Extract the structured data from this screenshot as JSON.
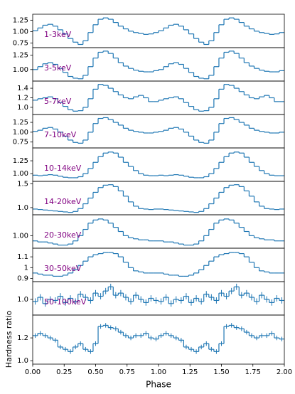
{
  "chart_data": {
    "type": "step",
    "color": "#1f77b4",
    "xlabel": "Phase",
    "ylabel": "Hardness ratio",
    "xlim": [
      0,
      2
    ],
    "xticks": [
      {
        "value": 0,
        "label": "0.00"
      },
      {
        "value": 0.25,
        "label": "0.25"
      },
      {
        "value": 0.5,
        "label": "0.50"
      },
      {
        "value": 0.75,
        "label": "0.75"
      },
      {
        "value": 1,
        "label": "1.00"
      },
      {
        "value": 1.25,
        "label": "1.25"
      },
      {
        "value": 1.5,
        "label": "1.50"
      },
      {
        "value": 1.75,
        "label": "1.75"
      },
      {
        "value": 2,
        "label": "2.00"
      }
    ],
    "x": [
      0.02,
      0.06,
      0.1,
      0.14,
      0.18,
      0.22,
      0.26,
      0.3,
      0.34,
      0.38,
      0.42,
      0.46,
      0.5,
      0.54,
      0.58,
      0.62,
      0.66,
      0.7,
      0.74,
      0.78,
      0.82,
      0.86,
      0.9,
      0.94,
      0.98,
      1.02,
      1.06,
      1.1,
      1.14,
      1.18,
      1.22,
      1.26,
      1.3,
      1.34,
      1.38,
      1.42,
      1.46,
      1.5,
      1.54,
      1.58,
      1.62,
      1.66,
      1.7,
      1.74,
      1.78,
      1.82,
      1.86,
      1.9,
      1.94,
      1.98
    ],
    "panels": [
      {
        "label": "1-3keV",
        "ylim": [
          0.65,
          1.38
        ],
        "yticks": [
          {
            "value": 0.75,
            "label": "0.75"
          },
          {
            "value": 1,
            "label": "1.00"
          },
          {
            "value": 1.25,
            "label": "1.25"
          }
        ],
        "values": [
          1.02,
          1.08,
          1.14,
          1.16,
          1.12,
          1.04,
          0.95,
          0.85,
          0.77,
          0.72,
          0.8,
          0.98,
          1.15,
          1.27,
          1.3,
          1.27,
          1.2,
          1.12,
          1.06,
          1.01,
          0.98,
          0.96,
          0.94,
          0.95,
          0.98,
          1.02,
          1.08,
          1.14,
          1.16,
          1.12,
          1.04,
          0.95,
          0.85,
          0.77,
          0.72,
          0.8,
          0.98,
          1.15,
          1.27,
          1.3,
          1.27,
          1.2,
          1.12,
          1.06,
          1.01,
          0.98,
          0.96,
          0.94,
          0.95,
          0.98
        ]
      },
      {
        "label": "3-5keV",
        "ylim": [
          0.8,
          1.38
        ],
        "yticks": [
          {
            "value": 1,
            "label": "1.00"
          },
          {
            "value": 1.25,
            "label": "1.25"
          }
        ],
        "values": [
          1.0,
          1.05,
          1.1,
          1.12,
          1.09,
          1.02,
          0.95,
          0.88,
          0.85,
          0.84,
          0.9,
          1.05,
          1.2,
          1.3,
          1.32,
          1.28,
          1.2,
          1.12,
          1.06,
          1.02,
          0.99,
          0.97,
          0.96,
          0.96,
          0.98,
          1.0,
          1.05,
          1.1,
          1.12,
          1.09,
          1.02,
          0.95,
          0.88,
          0.85,
          0.84,
          0.9,
          1.05,
          1.2,
          1.3,
          1.32,
          1.28,
          1.2,
          1.12,
          1.06,
          1.02,
          0.99,
          0.97,
          0.96,
          0.96,
          0.98
        ]
      },
      {
        "label": "5-7keV",
        "ylim": [
          0.85,
          1.55
        ],
        "yticks": [
          {
            "value": 1,
            "label": "1.0"
          },
          {
            "value": 1.2,
            "label": "1.2"
          },
          {
            "value": 1.4,
            "label": "1.4"
          }
        ],
        "values": [
          1.15,
          1.18,
          1.2,
          1.22,
          1.18,
          1.1,
          1.02,
          0.95,
          0.92,
          0.93,
          1.0,
          1.18,
          1.38,
          1.48,
          1.46,
          1.4,
          1.33,
          1.26,
          1.2,
          1.18,
          1.22,
          1.25,
          1.2,
          1.12,
          1.12,
          1.15,
          1.18,
          1.2,
          1.22,
          1.18,
          1.1,
          1.02,
          0.95,
          0.92,
          0.93,
          1.0,
          1.18,
          1.38,
          1.48,
          1.46,
          1.4,
          1.33,
          1.26,
          1.2,
          1.18,
          1.22,
          1.25,
          1.2,
          1.12,
          1.12
        ]
      },
      {
        "label": "7-10keV",
        "ylim": [
          0.6,
          1.45
        ],
        "yticks": [
          {
            "value": 0.75,
            "label": "0.75"
          },
          {
            "value": 1,
            "label": "1.00"
          },
          {
            "value": 1.25,
            "label": "1.25"
          }
        ],
        "values": [
          1.02,
          1.05,
          1.1,
          1.12,
          1.08,
          1.0,
          0.9,
          0.8,
          0.74,
          0.72,
          0.8,
          1.0,
          1.22,
          1.35,
          1.37,
          1.32,
          1.25,
          1.18,
          1.1,
          1.05,
          1.02,
          1.0,
          0.98,
          0.98,
          1.0,
          1.02,
          1.05,
          1.1,
          1.12,
          1.08,
          1.0,
          0.9,
          0.8,
          0.74,
          0.72,
          0.8,
          1.0,
          1.22,
          1.35,
          1.37,
          1.32,
          1.25,
          1.18,
          1.1,
          1.05,
          1.02,
          1.0,
          0.98,
          0.98,
          1.0
        ]
      },
      {
        "label": "10-14keV",
        "ylim": [
          0.85,
          1.5
        ],
        "yticks": [
          {
            "value": 1,
            "label": "1.00"
          },
          {
            "value": 1.25,
            "label": "1.25"
          }
        ],
        "values": [
          0.97,
          0.96,
          0.97,
          0.98,
          0.97,
          0.95,
          0.93,
          0.92,
          0.92,
          0.94,
          1.0,
          1.1,
          1.22,
          1.33,
          1.4,
          1.42,
          1.4,
          1.32,
          1.22,
          1.14,
          1.06,
          1.0,
          0.97,
          0.96,
          0.96,
          0.97,
          0.96,
          0.97,
          0.98,
          0.97,
          0.95,
          0.93,
          0.92,
          0.92,
          0.94,
          1.0,
          1.1,
          1.22,
          1.33,
          1.4,
          1.42,
          1.4,
          1.32,
          1.22,
          1.14,
          1.06,
          1.0,
          0.97,
          0.96,
          0.96
        ]
      },
      {
        "label": "14-20keV",
        "ylim": [
          0.85,
          1.55
        ],
        "yticks": [
          {
            "value": 1,
            "label": "1.0"
          },
          {
            "value": 1.5,
            "label": "1.5"
          }
        ],
        "values": [
          0.97,
          0.96,
          0.95,
          0.94,
          0.93,
          0.92,
          0.91,
          0.9,
          0.92,
          0.98,
          1.08,
          1.2,
          1.32,
          1.42,
          1.47,
          1.48,
          1.44,
          1.35,
          1.24,
          1.12,
          1.03,
          0.98,
          0.97,
          0.96,
          0.97,
          0.97,
          0.96,
          0.95,
          0.94,
          0.93,
          0.92,
          0.91,
          0.9,
          0.92,
          0.98,
          1.08,
          1.2,
          1.32,
          1.42,
          1.47,
          1.48,
          1.44,
          1.35,
          1.24,
          1.12,
          1.03,
          0.98,
          0.97,
          0.96,
          0.97
        ]
      },
      {
        "label": "20-30keV",
        "ylim": [
          0.88,
          1.2
        ],
        "yticks": [
          {
            "value": 1,
            "label": "1.00"
          }
        ],
        "values": [
          0.95,
          0.94,
          0.94,
          0.93,
          0.92,
          0.91,
          0.91,
          0.92,
          0.95,
          1.0,
          1.06,
          1.12,
          1.15,
          1.16,
          1.15,
          1.12,
          1.08,
          1.04,
          1.0,
          0.98,
          0.97,
          0.96,
          0.96,
          0.95,
          0.95,
          0.95,
          0.94,
          0.94,
          0.93,
          0.92,
          0.91,
          0.91,
          0.92,
          0.95,
          1.0,
          1.06,
          1.12,
          1.15,
          1.16,
          1.15,
          1.12,
          1.08,
          1.04,
          1.0,
          0.98,
          0.97,
          0.96,
          0.96,
          0.95,
          0.95
        ]
      },
      {
        "label": "30-50keV",
        "ylim": [
          0.87,
          1.18
        ],
        "yticks": [
          0.9,
          1.0,
          1.1
        ],
        "values": [
          0.95,
          0.94,
          0.93,
          0.93,
          0.92,
          0.92,
          0.93,
          0.95,
          0.98,
          1.02,
          1.06,
          1.1,
          1.12,
          1.13,
          1.14,
          1.14,
          1.13,
          1.1,
          1.05,
          1.0,
          0.97,
          0.96,
          0.95,
          0.95,
          0.95,
          0.95,
          0.94,
          0.93,
          0.93,
          0.92,
          0.92,
          0.93,
          0.95,
          0.98,
          1.02,
          1.06,
          1.1,
          1.12,
          1.13,
          1.14,
          1.14,
          1.13,
          1.1,
          1.05,
          1.0,
          0.97,
          0.96,
          0.95,
          0.95,
          0.95
        ]
      },
      {
        "label": "50-100keV",
        "ylim": [
          0.85,
          1.17
        ],
        "yticks": [
          {
            "value": 1,
            "label": "1.0"
          }
        ],
        "error": 0.03,
        "values": [
          0.98,
          1.02,
          0.96,
          1.0,
          0.99,
          1.03,
          0.97,
          1.01,
          0.98,
          1.05,
          1.02,
          0.99,
          1.06,
          1.03,
          1.08,
          1.12,
          1.04,
          1.06,
          1.02,
          0.98,
          1.04,
          1.0,
          0.97,
          1.01,
          0.99,
          0.98,
          1.02,
          0.96,
          1.0,
          0.99,
          1.03,
          0.97,
          1.01,
          0.98,
          1.05,
          1.02,
          0.99,
          1.06,
          1.03,
          1.08,
          1.12,
          1.04,
          1.06,
          1.02,
          0.98,
          1.04,
          1.0,
          0.97,
          1.01,
          0.99
        ]
      },
      {
        "ylim": [
          0.97,
          1.4
        ],
        "yticks": [
          {
            "value": 1,
            "label": "1.0"
          },
          {
            "value": 1.2,
            "label": "1.2"
          }
        ],
        "error": 0.02,
        "values": [
          1.22,
          1.24,
          1.22,
          1.2,
          1.18,
          1.12,
          1.1,
          1.08,
          1.12,
          1.15,
          1.1,
          1.08,
          1.15,
          1.3,
          1.31,
          1.29,
          1.28,
          1.25,
          1.22,
          1.2,
          1.22,
          1.22,
          1.24,
          1.2,
          1.19,
          1.22,
          1.24,
          1.22,
          1.2,
          1.18,
          1.12,
          1.1,
          1.08,
          1.12,
          1.15,
          1.1,
          1.08,
          1.15,
          1.3,
          1.31,
          1.29,
          1.28,
          1.25,
          1.22,
          1.2,
          1.22,
          1.22,
          1.24,
          1.2,
          1.19
        ]
      }
    ]
  }
}
